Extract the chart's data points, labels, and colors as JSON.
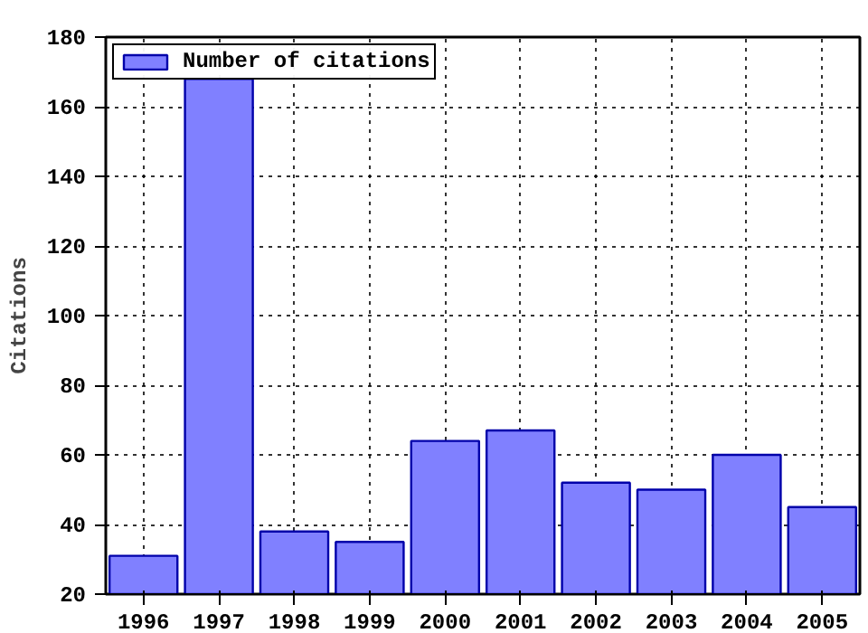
{
  "chart_data": {
    "type": "bar",
    "ylabel": "Citations",
    "x": [
      1996,
      1997,
      1998,
      1999,
      2000,
      2001,
      2002,
      2003,
      2004,
      2005
    ],
    "series": [
      {
        "name": "Number of citations",
        "color": "#8080ff",
        "values": [
          31,
          168,
          38,
          35,
          64,
          67,
          52,
          50,
          60,
          45
        ]
      }
    ],
    "xlim": [
      1995.5,
      2005.5
    ],
    "xticks": [
      1996,
      1997,
      1998,
      1999,
      2000,
      2001,
      2002,
      2003,
      2004,
      2005
    ],
    "ylim": [
      20,
      180
    ],
    "yticks": [
      20,
      40,
      60,
      80,
      100,
      120,
      140,
      160,
      180
    ],
    "grid": true,
    "legend": "top left"
  }
}
